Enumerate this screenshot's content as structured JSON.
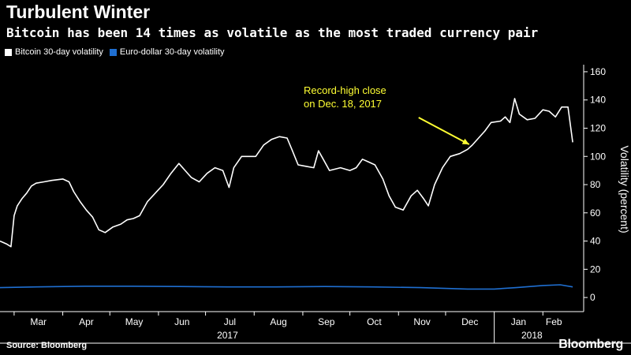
{
  "title": "Turbulent Winter",
  "subtitle": "Bitcoin has been 14 times as volatile as the most traded currency pair",
  "source": "Source: Bloomberg",
  "brand": "Bloomberg",
  "colors": {
    "bitcoin": "#ffffff",
    "eurusd": "#1f6fd1",
    "annotation": "#ffff33",
    "background": "#000000"
  },
  "chart_data": {
    "type": "line",
    "ylabel": "Volatility (percent)",
    "ylim": [
      -10,
      165
    ],
    "yticks": [
      0,
      20,
      40,
      60,
      80,
      100,
      120,
      140,
      160
    ],
    "xlim": [
      "2017-02-20",
      "2018-02-26"
    ],
    "month_ticks": [
      {
        "label": "Mar",
        "date": "2017-03-01"
      },
      {
        "label": "Apr",
        "date": "2017-04-01"
      },
      {
        "label": "May",
        "date": "2017-05-01"
      },
      {
        "label": "Jun",
        "date": "2017-06-01"
      },
      {
        "label": "Jul",
        "date": "2017-07-01"
      },
      {
        "label": "Aug",
        "date": "2017-08-01"
      },
      {
        "label": "Sep",
        "date": "2017-09-01"
      },
      {
        "label": "Oct",
        "date": "2017-10-01"
      },
      {
        "label": "Nov",
        "date": "2017-11-01"
      },
      {
        "label": "Dec",
        "date": "2017-12-01"
      },
      {
        "label": "Jan",
        "date": "2018-01-01"
      },
      {
        "label": "Feb",
        "date": "2018-02-01"
      }
    ],
    "year_labels": [
      {
        "label": "2017",
        "date": "2017-07-15"
      },
      {
        "label": "2018",
        "date": "2018-01-25"
      }
    ],
    "legend": [
      "Bitcoin 30-day volatility",
      "Euro-dollar 30-day volatility"
    ],
    "annotation": {
      "text_lines": [
        "Record-high close",
        "on Dec. 18, 2017"
      ],
      "date": "2017-12-18",
      "value": 108
    },
    "series": [
      {
        "name": "Bitcoin 30-day volatility",
        "points": [
          [
            "2017-02-20",
            40
          ],
          [
            "2017-02-24",
            38
          ],
          [
            "2017-02-27",
            36
          ],
          [
            "2017-03-01",
            58
          ],
          [
            "2017-03-03",
            65
          ],
          [
            "2017-03-06",
            70
          ],
          [
            "2017-03-09",
            74
          ],
          [
            "2017-03-12",
            79
          ],
          [
            "2017-03-15",
            81
          ],
          [
            "2017-03-20",
            82
          ],
          [
            "2017-03-25",
            83
          ],
          [
            "2017-04-01",
            84
          ],
          [
            "2017-04-05",
            82
          ],
          [
            "2017-04-08",
            75
          ],
          [
            "2017-04-12",
            68
          ],
          [
            "2017-04-16",
            62
          ],
          [
            "2017-04-20",
            57
          ],
          [
            "2017-04-24",
            48
          ],
          [
            "2017-04-28",
            46
          ],
          [
            "2017-05-03",
            50
          ],
          [
            "2017-05-08",
            52
          ],
          [
            "2017-05-12",
            55
          ],
          [
            "2017-05-16",
            56
          ],
          [
            "2017-05-20",
            58
          ],
          [
            "2017-05-25",
            68
          ],
          [
            "2017-05-30",
            74
          ],
          [
            "2017-06-04",
            80
          ],
          [
            "2017-06-09",
            88
          ],
          [
            "2017-06-14",
            95
          ],
          [
            "2017-06-18",
            90
          ],
          [
            "2017-06-22",
            85
          ],
          [
            "2017-06-27",
            82
          ],
          [
            "2017-07-02",
            88
          ],
          [
            "2017-07-07",
            92
          ],
          [
            "2017-07-12",
            90
          ],
          [
            "2017-07-16",
            78
          ],
          [
            "2017-07-19",
            92
          ],
          [
            "2017-07-24",
            100
          ],
          [
            "2017-07-29",
            100
          ],
          [
            "2017-08-02",
            100
          ],
          [
            "2017-08-07",
            108
          ],
          [
            "2017-08-12",
            112
          ],
          [
            "2017-08-17",
            114
          ],
          [
            "2017-08-22",
            113
          ],
          [
            "2017-08-25",
            105
          ],
          [
            "2017-08-29",
            94
          ],
          [
            "2017-09-03",
            93
          ],
          [
            "2017-09-08",
            92
          ],
          [
            "2017-09-11",
            104
          ],
          [
            "2017-09-14",
            98
          ],
          [
            "2017-09-18",
            90
          ],
          [
            "2017-09-25",
            92
          ],
          [
            "2017-10-01",
            90
          ],
          [
            "2017-10-05",
            92
          ],
          [
            "2017-10-09",
            98
          ],
          [
            "2017-10-13",
            96
          ],
          [
            "2017-10-17",
            94
          ],
          [
            "2017-10-22",
            84
          ],
          [
            "2017-10-26",
            72
          ],
          [
            "2017-10-30",
            64
          ],
          [
            "2017-11-04",
            62
          ],
          [
            "2017-11-09",
            72
          ],
          [
            "2017-11-13",
            76
          ],
          [
            "2017-11-17",
            70
          ],
          [
            "2017-11-20",
            65
          ],
          [
            "2017-11-24",
            80
          ],
          [
            "2017-11-29",
            92
          ],
          [
            "2017-12-04",
            100
          ],
          [
            "2017-12-10",
            102
          ],
          [
            "2017-12-15",
            105
          ],
          [
            "2017-12-18",
            108
          ],
          [
            "2017-12-22",
            113
          ],
          [
            "2017-12-26",
            118
          ],
          [
            "2017-12-30",
            124
          ],
          [
            "2018-01-05",
            125
          ],
          [
            "2018-01-08",
            128
          ],
          [
            "2018-01-11",
            124
          ],
          [
            "2018-01-14",
            141
          ],
          [
            "2018-01-17",
            130
          ],
          [
            "2018-01-22",
            126
          ],
          [
            "2018-01-27",
            127
          ],
          [
            "2018-02-01",
            133
          ],
          [
            "2018-02-05",
            132
          ],
          [
            "2018-02-09",
            128
          ],
          [
            "2018-02-13",
            135
          ],
          [
            "2018-02-17",
            135
          ],
          [
            "2018-02-20",
            110
          ]
        ]
      },
      {
        "name": "Euro-dollar 30-day volatility",
        "points": [
          [
            "2017-02-20",
            7
          ],
          [
            "2017-03-15",
            7.5
          ],
          [
            "2017-04-15",
            8
          ],
          [
            "2017-05-15",
            8
          ],
          [
            "2017-06-15",
            7.8
          ],
          [
            "2017-07-15",
            7.5
          ],
          [
            "2017-08-15",
            7.5
          ],
          [
            "2017-09-15",
            7.8
          ],
          [
            "2017-10-15",
            7.5
          ],
          [
            "2017-11-15",
            7
          ],
          [
            "2017-12-15",
            6
          ],
          [
            "2018-01-01",
            6
          ],
          [
            "2018-01-15",
            7
          ],
          [
            "2018-02-01",
            8.5
          ],
          [
            "2018-02-12",
            9
          ],
          [
            "2018-02-20",
            7.5
          ]
        ]
      }
    ]
  }
}
